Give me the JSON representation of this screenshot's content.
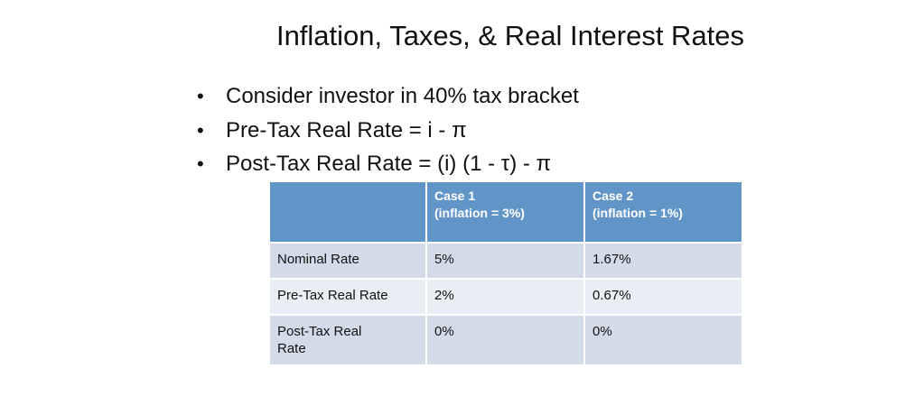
{
  "header": {
    "title": "Inflation, Taxes, & Real Interest Rates"
  },
  "bullets": [
    "Consider investor in 40% tax bracket",
    "Pre-Tax Real Rate = i - π",
    "Post-Tax Real Rate = (i) (1 - τ) - π"
  ],
  "table": {
    "columns": [
      [
        "Case 1",
        "(inflation = 3%)"
      ],
      [
        "Case 2",
        "(inflation = 1%)"
      ]
    ],
    "rows": [
      [
        "Nominal Rate",
        "5%",
        "1.67%"
      ],
      [
        "Pre-Tax Real Rate",
        "2%",
        "0.67%"
      ],
      [
        "Post-Tax Real Rate",
        "0%",
        "0%"
      ]
    ]
  }
}
